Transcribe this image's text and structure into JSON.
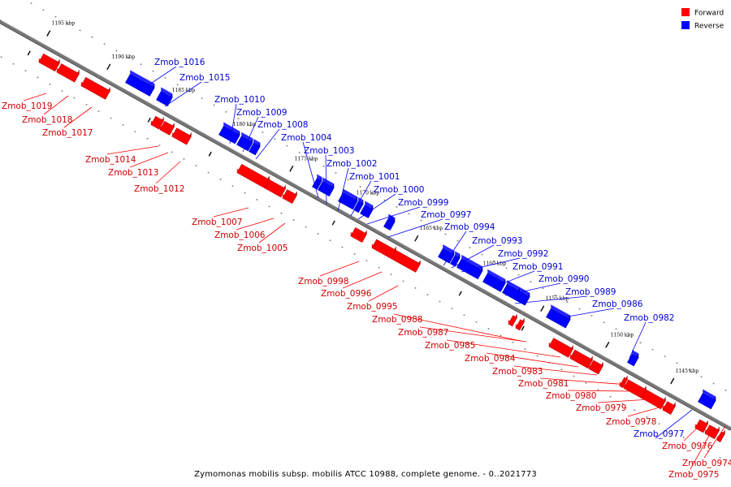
{
  "caption": "Zymomonas mobilis subsp. mobilis ATCC 10988, complete genome. - 0..2021773",
  "legend": [
    {
      "label": "Forward",
      "color": "#ff0000"
    },
    {
      "label": "Reverse",
      "color": "#0000ff"
    }
  ],
  "colors": {
    "forward": "#ff0000",
    "forward_label": "#cc0000",
    "reverse": "#0000ff",
    "reverse_label": "#0000cc"
  },
  "ticks": [
    "1195 kbp",
    "1190 kbp",
    "1185 kbp",
    "1180 kbp",
    "1175 kbp",
    "1170 kbp",
    "1165 kbp",
    "1160 kbp",
    "1155 kbp",
    "1150 kbp",
    "1145 kbp"
  ],
  "genes": [
    {
      "name": "Zmob_1019",
      "strand": "forward"
    },
    {
      "name": "Zmob_1018",
      "strand": "forward"
    },
    {
      "name": "Zmob_1017",
      "strand": "forward"
    },
    {
      "name": "Zmob_1016",
      "strand": "reverse"
    },
    {
      "name": "Zmob_1015",
      "strand": "reverse"
    },
    {
      "name": "Zmob_1014",
      "strand": "forward"
    },
    {
      "name": "Zmob_1013",
      "strand": "forward"
    },
    {
      "name": "Zmob_1012",
      "strand": "forward"
    },
    {
      "name": "Zmob_1010",
      "strand": "reverse"
    },
    {
      "name": "Zmob_1009",
      "strand": "reverse"
    },
    {
      "name": "Zmob_1008",
      "strand": "reverse"
    },
    {
      "name": "Zmob_1007",
      "strand": "forward"
    },
    {
      "name": "Zmob_1006",
      "strand": "forward"
    },
    {
      "name": "Zmob_1005",
      "strand": "forward"
    },
    {
      "name": "Zmob_1004",
      "strand": "reverse"
    },
    {
      "name": "Zmob_1003",
      "strand": "reverse"
    },
    {
      "name": "Zmob_1002",
      "strand": "reverse"
    },
    {
      "name": "Zmob_1001",
      "strand": "reverse"
    },
    {
      "name": "Zmob_1000",
      "strand": "reverse"
    },
    {
      "name": "Zmob_0999",
      "strand": "reverse"
    },
    {
      "name": "Zmob_0998",
      "strand": "forward"
    },
    {
      "name": "Zmob_0997",
      "strand": "reverse"
    },
    {
      "name": "Zmob_0996",
      "strand": "forward"
    },
    {
      "name": "Zmob_0995",
      "strand": "forward"
    },
    {
      "name": "Zmob_0994",
      "strand": "reverse"
    },
    {
      "name": "Zmob_0993",
      "strand": "reverse"
    },
    {
      "name": "Zmob_0992",
      "strand": "reverse"
    },
    {
      "name": "Zmob_0991",
      "strand": "reverse"
    },
    {
      "name": "Zmob_0990",
      "strand": "reverse"
    },
    {
      "name": "Zmob_0989",
      "strand": "reverse"
    },
    {
      "name": "Zmob_0988",
      "strand": "forward"
    },
    {
      "name": "Zmob_0987",
      "strand": "forward"
    },
    {
      "name": "Zmob_0986",
      "strand": "reverse"
    },
    {
      "name": "Zmob_0985",
      "strand": "forward"
    },
    {
      "name": "Zmob_0984",
      "strand": "forward"
    },
    {
      "name": "Zmob_0983",
      "strand": "forward"
    },
    {
      "name": "Zmob_0982",
      "strand": "reverse"
    },
    {
      "name": "Zmob_0981",
      "strand": "forward"
    },
    {
      "name": "Zmob_0980",
      "strand": "forward"
    },
    {
      "name": "Zmob_0979",
      "strand": "forward"
    },
    {
      "name": "Zmob_0978",
      "strand": "forward"
    },
    {
      "name": "Zmob_0977",
      "strand": "reverse"
    },
    {
      "name": "Zmob_0976",
      "strand": "forward"
    },
    {
      "name": "Zmob_0974",
      "strand": "forward"
    },
    {
      "name": "Zmob_0975",
      "strand": "forward"
    }
  ]
}
